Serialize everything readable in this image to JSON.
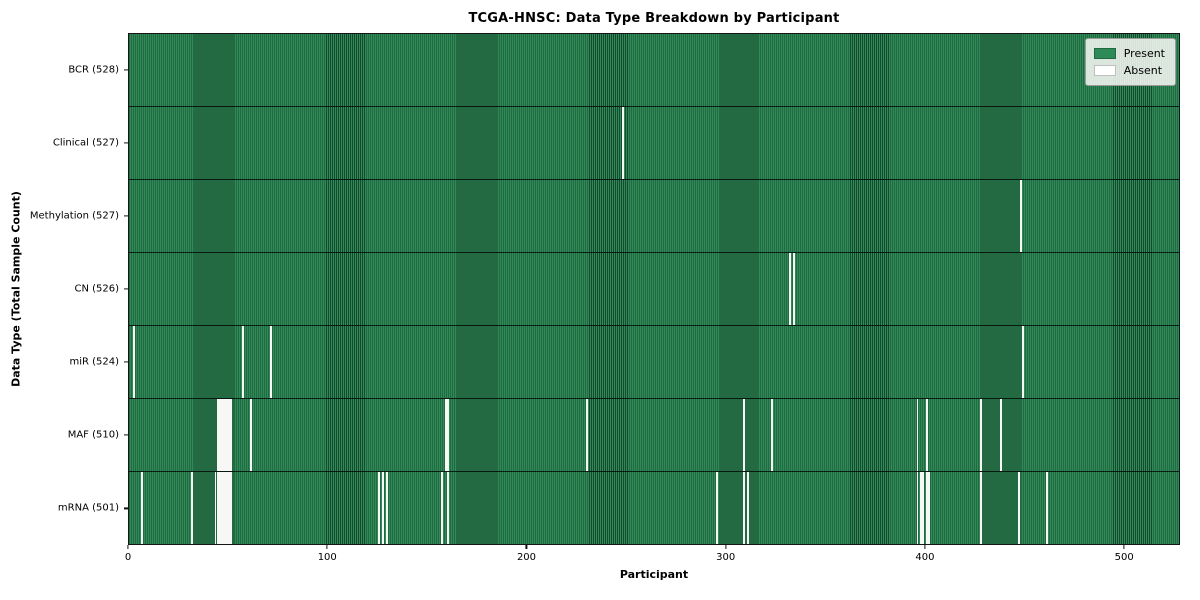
{
  "title": "TCGA-HNSC: Data Type Breakdown by Participant",
  "xlabel": "Participant",
  "ylabel": "Data Type (Total Sample Count)",
  "colors": {
    "present": "#2e8b57",
    "absent": "#ffffff"
  },
  "legend": {
    "items": [
      {
        "label": "Present",
        "color": "#2e8b57"
      },
      {
        "label": "Absent",
        "color": "#ffffff"
      }
    ]
  },
  "chart_data": {
    "type": "heatmap",
    "xlabel": "Participant",
    "ylabel": "Data Type (Total Sample Count)",
    "x_range": [
      0,
      528
    ],
    "x_ticks": [
      0,
      100,
      200,
      300,
      400,
      500
    ],
    "n_participants": 528,
    "legend_position": "upper right",
    "grid": false,
    "rows": [
      {
        "label": "BCR (528)",
        "data_type": "BCR",
        "total": 528,
        "absent_participants": []
      },
      {
        "label": "Clinical (527)",
        "data_type": "Clinical",
        "total": 527,
        "absent_participants": [
          248
        ]
      },
      {
        "label": "Methylation (527)",
        "data_type": "Methylation",
        "total": 527,
        "absent_participants": [
          448
        ]
      },
      {
        "label": "CN (526)",
        "data_type": "CN",
        "total": 526,
        "absent_participants": [
          332,
          334
        ]
      },
      {
        "label": "miR (524)",
        "data_type": "miR",
        "total": 524,
        "absent_participants": [
          2,
          57,
          71,
          449
        ]
      },
      {
        "label": "MAF (510)",
        "data_type": "MAF",
        "total": 510,
        "absent_participants": [
          44,
          45,
          46,
          47,
          48,
          49,
          50,
          51,
          61,
          159,
          160,
          230,
          309,
          323,
          396,
          401,
          428,
          438
        ]
      },
      {
        "label": "mRNA (501)",
        "data_type": "mRNA",
        "total": 501,
        "absent_participants": [
          6,
          31,
          43,
          44,
          45,
          46,
          47,
          48,
          49,
          50,
          51,
          125,
          127,
          129,
          157,
          160,
          295,
          309,
          311,
          396,
          398,
          399,
          401,
          402,
          428,
          447,
          461
        ]
      }
    ]
  }
}
